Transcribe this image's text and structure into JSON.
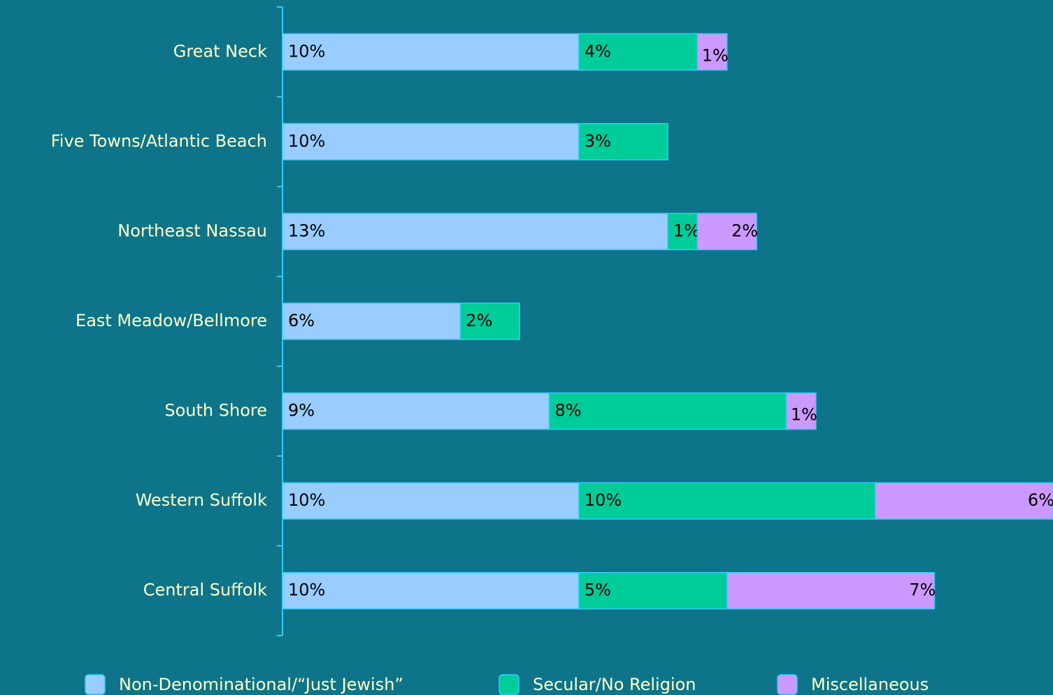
{
  "chart_data": {
    "type": "stacked-bar-horizontal",
    "categories": [
      "Great Neck",
      "Five Towns/Atlantic Beach",
      "Northeast Nassau",
      "East Meadow/Bellmore",
      "South Shore",
      "Western Suffolk",
      "Central Suffolk"
    ],
    "series": [
      {
        "name": "Non-Denominational/“Just Jewish”",
        "color": "#99ccff",
        "values": [
          10,
          10,
          13,
          6,
          9,
          10,
          10
        ],
        "value_labels": [
          "10%",
          "10%",
          "13%",
          "6%",
          "9%",
          "10%",
          "10%"
        ]
      },
      {
        "name": "Secular/No Religion",
        "color": "#00cc99",
        "values": [
          4,
          3,
          1,
          2,
          8,
          10,
          5
        ],
        "value_labels": [
          "4%",
          "3%",
          "1%",
          "2%",
          "8%",
          "10%",
          "5%"
        ]
      },
      {
        "name": "Miscellaneous",
        "color": "#cc99ff",
        "values": [
          1,
          null,
          2,
          null,
          1,
          6,
          7
        ],
        "value_labels": [
          "1%",
          null,
          "2%",
          null,
          "1%",
          "6%",
          "7%"
        ]
      }
    ],
    "xlim": [
      0,
      26
    ],
    "legend": "bottom"
  }
}
